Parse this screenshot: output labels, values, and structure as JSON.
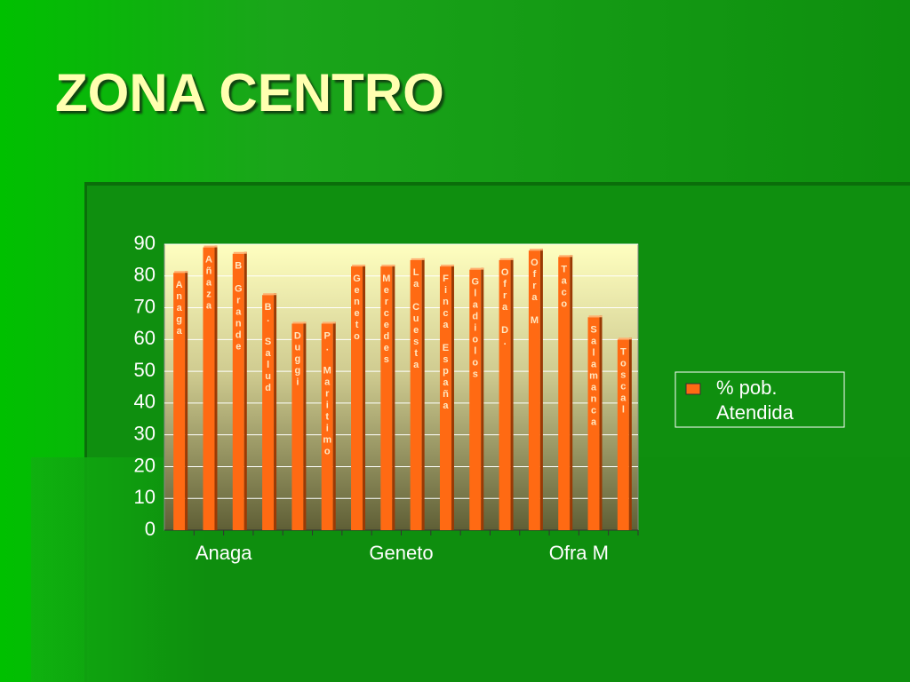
{
  "title": "ZONA CENTRO",
  "chart_data": {
    "type": "bar",
    "categories": [
      "Anaga",
      null,
      null,
      null,
      null,
      null,
      "Geneto",
      null,
      null,
      null,
      null,
      null,
      "Ofra M",
      null,
      null,
      null
    ],
    "data_labels": [
      "Anaga",
      "Añaza",
      "B Grande",
      "B. Salud",
      "Duggi",
      "P. Maritimo",
      "Geneto",
      "Mercedes",
      "La Cuesta",
      "Finca España",
      "Gladiolos",
      "Ofra D.",
      "Ofra M",
      "Taco",
      "Salamanca",
      "Toscal"
    ],
    "series": [
      {
        "name": "% pob. Atendida",
        "color": "#ff6a13",
        "values": [
          81,
          89,
          87,
          74,
          65,
          65,
          83,
          83,
          85,
          83,
          82,
          85,
          88,
          86,
          67,
          60
        ]
      }
    ],
    "ylim": [
      0,
      90
    ],
    "yticks": [
      0,
      10,
      20,
      30,
      40,
      50,
      60,
      70,
      80,
      90
    ],
    "grid": true,
    "legend": "right"
  }
}
